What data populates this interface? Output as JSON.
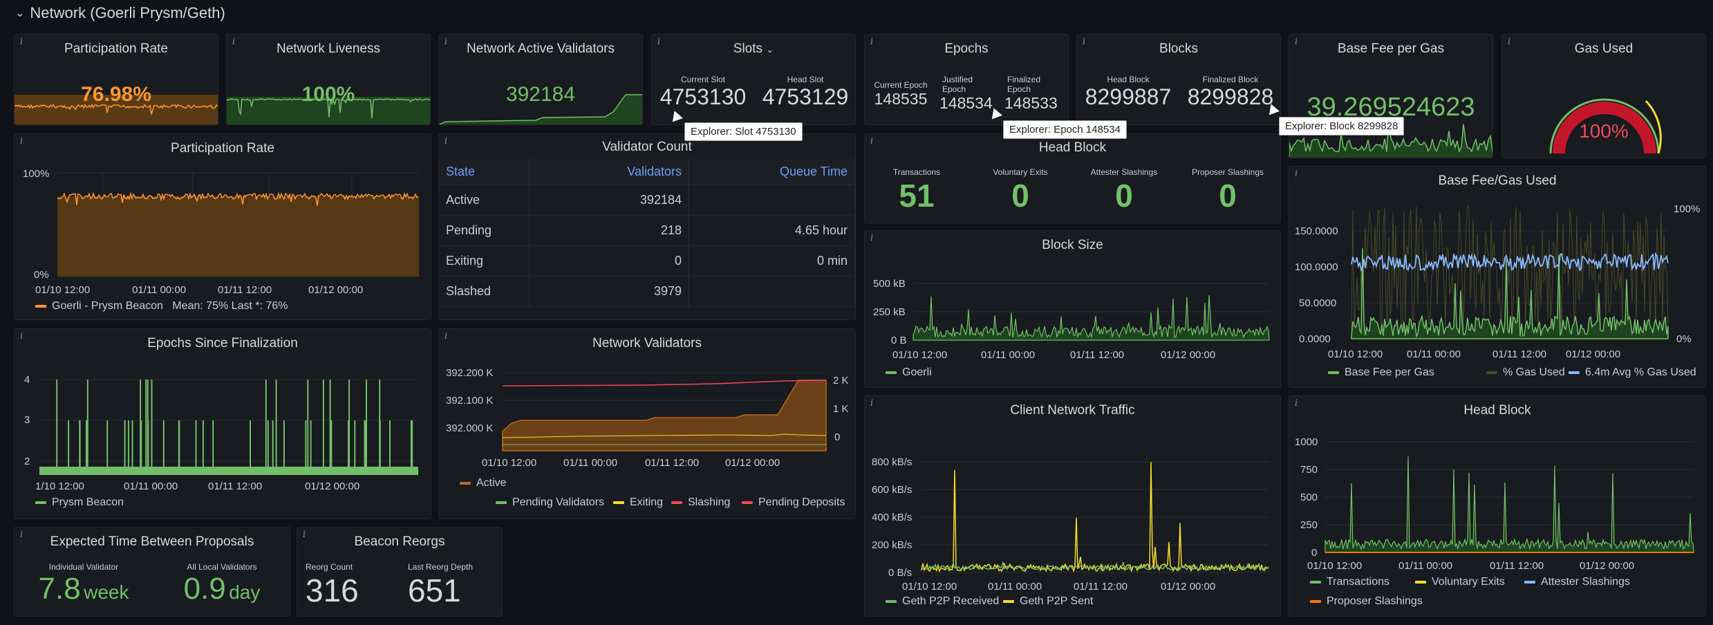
{
  "row": {
    "title": "Network (Goerli Prysm/Geth)"
  },
  "info_glyph": "i",
  "participation_small": {
    "title": "Participation Rate",
    "value": "76.98%"
  },
  "liveness": {
    "title": "Network Liveness",
    "value": "100%"
  },
  "active_validators": {
    "title": "Network Active Validators",
    "value": "392184"
  },
  "slots": {
    "title": "Slots",
    "current_label": "Current Slot",
    "current_value": "4753130",
    "head_label": "Head Slot",
    "head_value": "4753129",
    "tooltip": "Explorer: Slot 4753130"
  },
  "epochs": {
    "title": "Epochs",
    "current_label": "Current Epoch",
    "current_value": "148535",
    "justified_label": "Justified Epoch",
    "justified_value": "148534",
    "finalized_label": "Finalized Epoch",
    "finalized_value": "148533",
    "tooltip": "Explorer: Epoch 148534"
  },
  "blocks": {
    "title": "Blocks",
    "head_label": "Head Block",
    "head_value": "8299887",
    "finalized_label": "Finalized Block",
    "finalized_value": "8299828",
    "tooltip": "Explorer: Block 8299828"
  },
  "base_fee": {
    "title": "Base Fee per Gas",
    "value": "39.269524623"
  },
  "gas_used": {
    "title": "Gas Used",
    "value": "100%",
    "fraction": 1.0
  },
  "participation_chart": {
    "title": "Participation Rate",
    "y_ticks": [
      "100%",
      "0%"
    ],
    "x_ticks": [
      "01/10 12:00",
      "01/11 00:00",
      "01/11 12:00",
      "01/12 00:00"
    ],
    "legend": "Goerli - Prysm Beacon",
    "legend_stats": "Mean: 75%   Last *: 76%"
  },
  "validator_count": {
    "title": "Validator Count",
    "headers": [
      "State",
      "Validators",
      "Queue Time"
    ],
    "rows": [
      [
        "Active",
        "392184",
        ""
      ],
      [
        "Pending",
        "218",
        "4.65 hour"
      ],
      [
        "Exiting",
        "0",
        "0 min"
      ],
      [
        "Slashed",
        "3979",
        ""
      ]
    ]
  },
  "head_block_stats": {
    "title": "Head Block",
    "items": [
      {
        "label": "Transactions",
        "value": "51"
      },
      {
        "label": "Voluntary Exits",
        "value": "0"
      },
      {
        "label": "Attester Slashings",
        "value": "0"
      },
      {
        "label": "Proposer Slashings",
        "value": "0"
      }
    ]
  },
  "block_size": {
    "title": "Block Size",
    "y_ticks": [
      "500 kB",
      "250 kB",
      "0 B"
    ],
    "x_ticks": [
      "01/10 12:00",
      "01/11 00:00",
      "01/11 12:00",
      "01/12 00:00"
    ],
    "legend": "Goerli"
  },
  "base_fee_gas": {
    "title": "Base Fee/Gas Used",
    "y_ticks": [
      "150.0000",
      "100.0000",
      "50.0000",
      "0.0000"
    ],
    "y2_ticks": [
      "100%",
      "0%"
    ],
    "x_ticks": [
      "01/10 12:00",
      "01/11 00:00",
      "01/11 12:00",
      "01/12 00:00"
    ],
    "legend": [
      "Base Fee per Gas",
      "% Gas Used",
      "6.4m Avg % Gas Used"
    ]
  },
  "epochs_since_finalization": {
    "title": "Epochs Since Finalization",
    "y_ticks": [
      "4",
      "3",
      "2"
    ],
    "x_ticks": [
      "1/10 12:00",
      "01/11 00:00",
      "01/11 12:00",
      "01/12 00:00"
    ],
    "legend": "Prysm Beacon"
  },
  "network_validators": {
    "title": "Network Validators",
    "y_ticks": [
      "392.200 K",
      "392.100 K",
      "392.000 K"
    ],
    "y2_ticks": [
      "2 K",
      "1 K",
      "0"
    ],
    "x_ticks": [
      "01/10 12:00",
      "01/11 00:00",
      "01/11 12:00",
      "01/12 00:00"
    ],
    "legend_top": "Active",
    "legend": [
      "Pending Validators",
      "Exiting",
      "Slashing",
      "Pending Deposits"
    ]
  },
  "client_traffic": {
    "title": "Client Network Traffic",
    "y_ticks": [
      "800 kB/s",
      "600 kB/s",
      "400 kB/s",
      "200 kB/s",
      "0 B/s"
    ],
    "x_ticks": [
      "01/10 12:00",
      "01/11 00:00",
      "01/11 12:00",
      "01/12 00:00"
    ],
    "legend": [
      "Geth P2P Received",
      "Geth P2P Sent"
    ]
  },
  "head_block_chart": {
    "title": "Head Block",
    "y_ticks": [
      "1000",
      "750",
      "500",
      "250",
      "0"
    ],
    "x_ticks": [
      "01/10 12:00",
      "01/11 00:00",
      "01/11 12:00",
      "01/12 00:00"
    ],
    "legend": [
      "Transactions",
      "Voluntary Exits",
      "Attester Slashings",
      "Proposer Slashings"
    ]
  },
  "expected_time": {
    "title": "Expected Time Between Proposals",
    "individual_label": "Individual Validator",
    "individual_value": "7.8",
    "individual_unit": "week",
    "local_label": "All Local Validators",
    "local_value": "0.9",
    "local_unit": "day"
  },
  "reorgs": {
    "title": "Beacon Reorgs",
    "count_label": "Reorg Count",
    "count_value": "316",
    "depth_label": "Last Reorg Depth",
    "depth_value": "651"
  },
  "colors": {
    "green": "#73bf69",
    "orange": "#ff9830",
    "yellow": "#fade2a",
    "red": "#f2495c",
    "blue": "#8ab8ff",
    "brown": "#b86b1f"
  }
}
